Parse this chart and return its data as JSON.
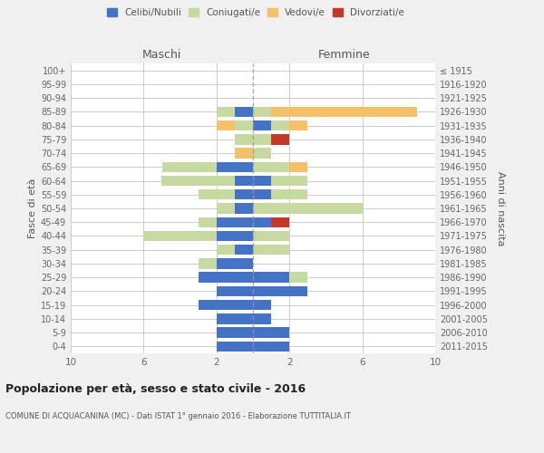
{
  "age_groups": [
    "0-4",
    "5-9",
    "10-14",
    "15-19",
    "20-24",
    "25-29",
    "30-34",
    "35-39",
    "40-44",
    "45-49",
    "50-54",
    "55-59",
    "60-64",
    "65-69",
    "70-74",
    "75-79",
    "80-84",
    "85-89",
    "90-94",
    "95-99",
    "100+"
  ],
  "birth_years": [
    "2011-2015",
    "2006-2010",
    "2001-2005",
    "1996-2000",
    "1991-1995",
    "1986-1990",
    "1981-1985",
    "1976-1980",
    "1971-1975",
    "1966-1970",
    "1961-1965",
    "1956-1960",
    "1951-1955",
    "1946-1950",
    "1941-1945",
    "1936-1940",
    "1931-1935",
    "1926-1930",
    "1921-1925",
    "1916-1920",
    "≤ 1915"
  ],
  "male_celibi": [
    2,
    2,
    2,
    3,
    2,
    3,
    2,
    1,
    2,
    2,
    1,
    1,
    1,
    2,
    0,
    0,
    0,
    1,
    0,
    0,
    0
  ],
  "male_coniugati": [
    0,
    0,
    0,
    0,
    0,
    0,
    1,
    1,
    4,
    1,
    1,
    2,
    4,
    3,
    0,
    1,
    1,
    1,
    0,
    0,
    0
  ],
  "male_vedovi": [
    0,
    0,
    0,
    0,
    0,
    0,
    0,
    0,
    0,
    0,
    0,
    0,
    0,
    0,
    1,
    0,
    1,
    0,
    0,
    0,
    0
  ],
  "male_divorziati": [
    0,
    0,
    0,
    0,
    0,
    0,
    0,
    0,
    0,
    0,
    0,
    0,
    0,
    0,
    0,
    0,
    0,
    0,
    0,
    0,
    0
  ],
  "female_celibi": [
    2,
    2,
    1,
    1,
    3,
    2,
    0,
    0,
    0,
    1,
    0,
    1,
    1,
    0,
    0,
    0,
    1,
    0,
    0,
    0,
    0
  ],
  "female_coniugati": [
    0,
    0,
    0,
    0,
    0,
    1,
    0,
    2,
    2,
    0,
    6,
    2,
    2,
    2,
    1,
    1,
    1,
    1,
    0,
    0,
    0
  ],
  "female_vedovi": [
    0,
    0,
    0,
    0,
    0,
    0,
    0,
    0,
    0,
    0,
    0,
    0,
    0,
    1,
    0,
    0,
    1,
    8,
    0,
    0,
    0
  ],
  "female_divorziati": [
    0,
    0,
    0,
    0,
    0,
    0,
    0,
    0,
    0,
    1,
    0,
    0,
    0,
    0,
    0,
    1,
    0,
    0,
    0,
    0,
    0
  ],
  "color_celibi": "#4472C4",
  "color_coniugati": "#C5D9A0",
  "color_vedovi": "#F4C16A",
  "color_divorziati": "#C0392B",
  "legend_labels": [
    "Celibi/Nubili",
    "Coniugati/e",
    "Vedovi/e",
    "Divorziati/e"
  ],
  "xlim": 10,
  "title": "Popolazione per età, sesso e stato civile - 2016",
  "subtitle": "COMUNE DI ACQUACANINA (MC) - Dati ISTAT 1° gennaio 2016 - Elaborazione TUTTITALIA.IT",
  "ylabel_left": "Fasce di età",
  "ylabel_right": "Anni di nascita",
  "label_male": "Maschi",
  "label_female": "Femmine",
  "bg_color": "#f0f0f0",
  "plot_bg": "#ffffff",
  "grid_color": "#cccccc"
}
